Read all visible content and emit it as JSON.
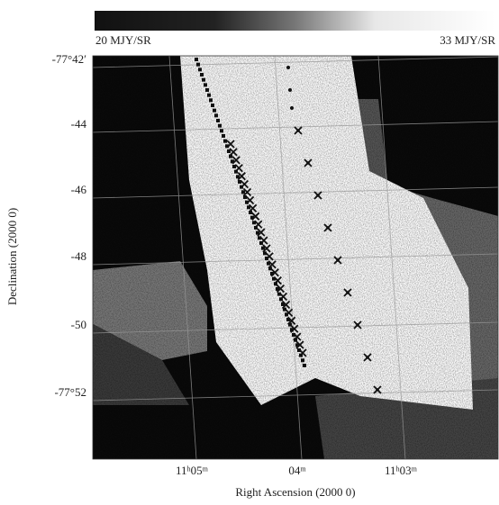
{
  "colorbar": {
    "min_label": "20 MJY/SR",
    "max_label": "33 MJY/SR"
  },
  "axes": {
    "x_label": "Right Ascension  (2000 0)",
    "y_label": "Declination  (2000 0)",
    "x_ticks": [
      "11ʰ05ᵐ",
      "04ᵐ",
      "11ʰ03ᵐ"
    ],
    "y_ticks": [
      "-77°42′",
      "-44",
      "-46",
      "-48",
      "-50",
      "-77°52"
    ]
  }
}
